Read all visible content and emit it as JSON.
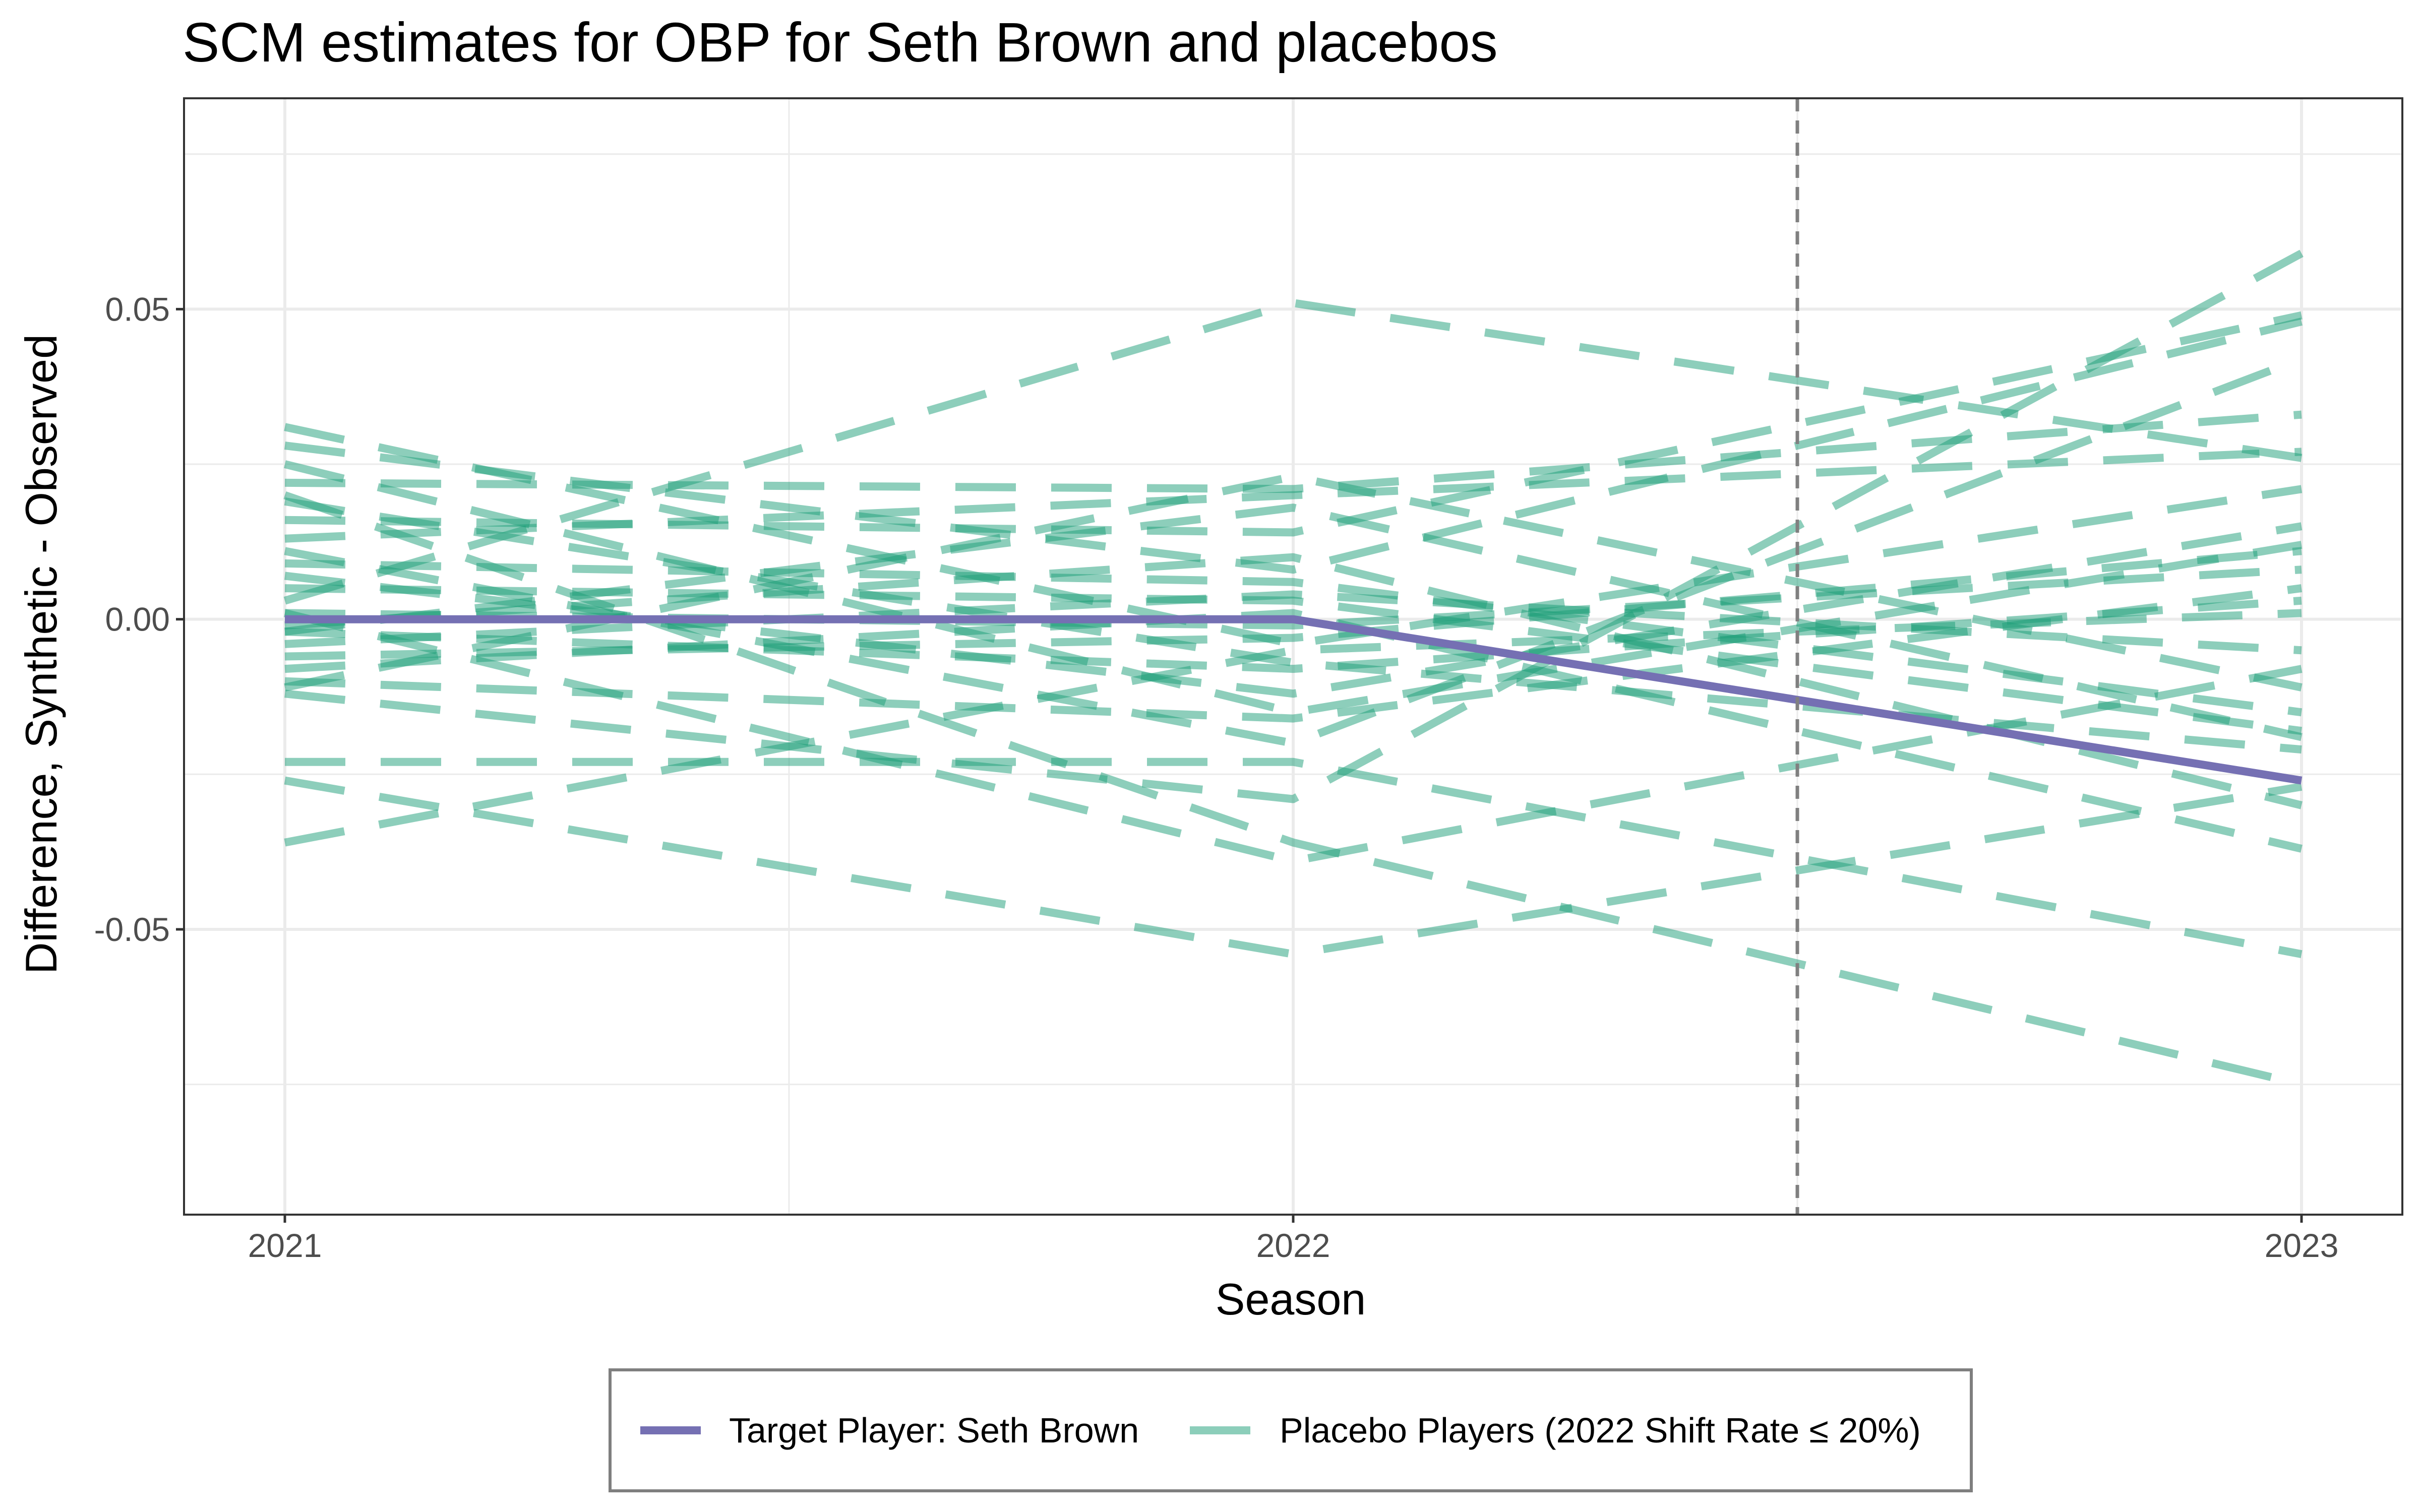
{
  "chart_data": {
    "type": "line",
    "title": "SCM estimates for OBP for Seth Brown and placebos",
    "xlabel": "Season",
    "ylabel": "Difference, Synthetic - Observed",
    "x_ticks": [
      "2021",
      "2022",
      "2023"
    ],
    "y_ticks": [
      "0.05",
      "0.00",
      "-0.05"
    ],
    "y_tick_values": [
      0.05,
      0.0,
      -0.05
    ],
    "xlim": [
      2020.9,
      2023.1
    ],
    "ylim": [
      -0.096,
      0.084
    ],
    "grid": true,
    "treatment_line_x": 2022.5,
    "legend_position": "bottom",
    "colors": {
      "target": "#7570b3",
      "placebo": "#1b9e77",
      "treatment_line": "#808080"
    },
    "target_series": {
      "name": "Target Player: Seth Brown",
      "x": [
        2021,
        2022,
        2023
      ],
      "y": [
        0.0,
        0.0,
        -0.026
      ]
    },
    "placebo_series_name": "Placebo Players (2022 Shift Rate ≤ 20%)",
    "placebo_series": [
      {
        "x": [
          2021,
          2022,
          2023
        ],
        "y": [
          0.031,
          -0.004,
          0.021
        ]
      },
      {
        "x": [
          2021,
          2022,
          2023
        ],
        "y": [
          0.028,
          0.008,
          0.048
        ]
      },
      {
        "x": [
          2021,
          2022,
          2023
        ],
        "y": [
          0.025,
          -0.015,
          0.012
        ]
      },
      {
        "x": [
          2021,
          2022,
          2023
        ],
        "y": [
          0.022,
          0.021,
          0.033
        ]
      },
      {
        "x": [
          2021,
          2022,
          2023
        ],
        "y": [
          0.019,
          -0.007,
          -0.021
        ]
      },
      {
        "x": [
          2021,
          2022,
          2023
        ],
        "y": [
          0.016,
          0.014,
          0.049
        ]
      },
      {
        "x": [
          2021,
          2022,
          2023
        ],
        "y": [
          0.013,
          0.02,
          0.027
        ]
      },
      {
        "x": [
          2021,
          2022,
          2023
        ],
        "y": [
          0.011,
          -0.02,
          0.042
        ]
      },
      {
        "x": [
          2021,
          2022,
          2023
        ],
        "y": [
          0.009,
          0.006,
          -0.015
        ]
      },
      {
        "x": [
          2021,
          2022,
          2023
        ],
        "y": [
          0.007,
          -0.012,
          0.015
        ]
      },
      {
        "x": [
          2021,
          2022,
          2023
        ],
        "y": [
          0.005,
          0.003,
          -0.018
        ]
      },
      {
        "x": [
          2021,
          2022,
          2023
        ],
        "y": [
          0.003,
          0.051,
          0.026
        ]
      },
      {
        "x": [
          2021,
          2022,
          2023
        ],
        "y": [
          0.001,
          -0.001,
          0.008
        ]
      },
      {
        "x": [
          2021,
          2022,
          2023
        ],
        "y": [
          -0.001,
          0.01,
          -0.03
        ]
      },
      {
        "x": [
          2021,
          2022,
          2023
        ],
        "y": [
          -0.002,
          -0.008,
          0.003
        ]
      },
      {
        "x": [
          2021,
          2022,
          2023
        ],
        "y": [
          -0.004,
          0.004,
          -0.005
        ]
      },
      {
        "x": [
          2021,
          2022,
          2023
        ],
        "y": [
          -0.006,
          -0.003,
          0.011
        ]
      },
      {
        "x": [
          2021,
          2022,
          2023
        ],
        "y": [
          -0.008,
          0.001,
          -0.037
        ]
      },
      {
        "x": [
          2021,
          2022,
          2023
        ],
        "y": [
          -0.01,
          -0.016,
          0.005
        ]
      },
      {
        "x": [
          2021,
          2022,
          2023
        ],
        "y": [
          -0.011,
          0.023,
          -0.011
        ]
      },
      {
        "x": [
          2021,
          2022,
          2023
        ],
        "y": [
          -0.012,
          -0.029,
          0.059
        ]
      },
      {
        "x": [
          2021,
          2022,
          2023
        ],
        "y": [
          0.02,
          -0.036,
          -0.075
        ]
      },
      {
        "x": [
          2021,
          2022,
          2023
        ],
        "y": [
          -0.023,
          -0.023,
          -0.054
        ]
      },
      {
        "x": [
          2021,
          2022,
          2023
        ],
        "y": [
          -0.026,
          -0.054,
          -0.027
        ]
      },
      {
        "x": [
          2021,
          2022,
          2023
        ],
        "y": [
          -0.036,
          -0.005,
          0.001
        ]
      },
      {
        "x": [
          2021,
          2022,
          2023
        ],
        "y": [
          -0.002,
          0.018,
          -0.019
        ]
      },
      {
        "x": [
          2021,
          2022,
          2023
        ],
        "y": [
          0.001,
          -0.039,
          -0.008
        ]
      }
    ]
  }
}
